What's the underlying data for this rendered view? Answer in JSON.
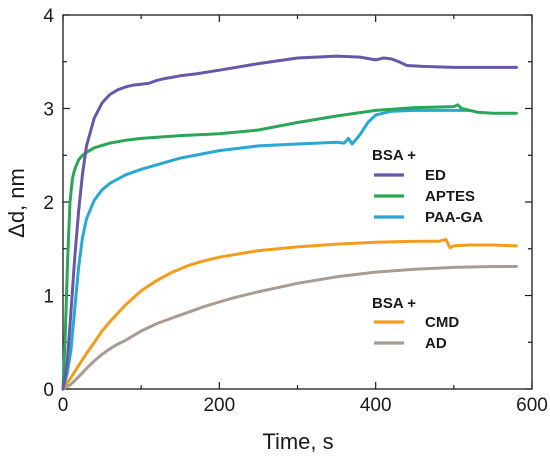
{
  "chart_data": {
    "type": "line",
    "title": "",
    "xlabel": "Time, s",
    "ylabel": "Δd, nm",
    "xlim": [
      0,
      600
    ],
    "ylim": [
      0,
      4
    ],
    "xticks": [
      0,
      200,
      400,
      600
    ],
    "yticks": [
      0,
      1,
      2,
      3,
      4
    ],
    "grid": false,
    "legends": [
      {
        "title": "BSA +",
        "placement": "center-right",
        "entries": [
          "ED",
          "APTES",
          "PAA-GA"
        ]
      },
      {
        "title": "BSA +",
        "placement": "bottom-right",
        "entries": [
          "CMD",
          "AD"
        ]
      }
    ],
    "series": [
      {
        "name": "ED",
        "color": "#6757a8",
        "x": [
          0,
          5,
          10,
          15,
          20,
          25,
          30,
          40,
          50,
          60,
          70,
          80,
          90,
          100,
          110,
          120,
          130,
          150,
          170,
          200,
          250,
          300,
          350,
          380,
          400,
          410,
          420,
          430,
          440,
          460,
          500,
          550,
          580
        ],
        "y": [
          0,
          0.25,
          0.8,
          1.4,
          1.9,
          2.3,
          2.6,
          2.9,
          3.06,
          3.15,
          3.2,
          3.23,
          3.25,
          3.26,
          3.27,
          3.3,
          3.32,
          3.35,
          3.37,
          3.41,
          3.48,
          3.54,
          3.56,
          3.55,
          3.52,
          3.54,
          3.53,
          3.5,
          3.46,
          3.45,
          3.44,
          3.44,
          3.44
        ]
      },
      {
        "name": "APTES",
        "color": "#2aa659",
        "x": [
          0,
          3,
          6,
          9,
          12,
          15,
          20,
          25,
          30,
          40,
          60,
          80,
          100,
          150,
          200,
          250,
          300,
          350,
          400,
          450,
          500,
          505,
          510,
          530,
          550,
          580
        ],
        "y": [
          0,
          0.6,
          1.4,
          2.0,
          2.25,
          2.35,
          2.45,
          2.5,
          2.53,
          2.58,
          2.63,
          2.66,
          2.68,
          2.71,
          2.73,
          2.77,
          2.85,
          2.92,
          2.98,
          3.01,
          3.02,
          3.04,
          3.0,
          2.96,
          2.95,
          2.95
        ]
      },
      {
        "name": "PAA-GA",
        "color": "#29a8d4",
        "x": [
          0,
          5,
          10,
          15,
          20,
          25,
          30,
          40,
          50,
          60,
          80,
          100,
          150,
          200,
          250,
          300,
          350,
          360,
          365,
          370,
          380,
          390,
          400,
          420,
          450,
          500,
          520
        ],
        "y": [
          0,
          0.15,
          0.4,
          0.85,
          1.3,
          1.62,
          1.82,
          2.02,
          2.13,
          2.2,
          2.29,
          2.35,
          2.47,
          2.55,
          2.6,
          2.62,
          2.64,
          2.63,
          2.68,
          2.62,
          2.72,
          2.85,
          2.93,
          2.97,
          2.98,
          2.98,
          2.98
        ]
      },
      {
        "name": "CMD",
        "color": "#f39c1e",
        "x": [
          0,
          10,
          20,
          30,
          40,
          50,
          60,
          80,
          100,
          120,
          140,
          160,
          180,
          200,
          250,
          300,
          350,
          400,
          450,
          480,
          490,
          495,
          500,
          520,
          550,
          580
        ],
        "y": [
          0,
          0.12,
          0.25,
          0.38,
          0.5,
          0.62,
          0.72,
          0.9,
          1.05,
          1.16,
          1.25,
          1.32,
          1.37,
          1.41,
          1.48,
          1.52,
          1.55,
          1.57,
          1.58,
          1.58,
          1.6,
          1.51,
          1.53,
          1.54,
          1.54,
          1.53
        ]
      },
      {
        "name": "AD",
        "color": "#a89c92",
        "x": [
          0,
          10,
          20,
          30,
          40,
          50,
          60,
          70,
          80,
          100,
          120,
          140,
          160,
          180,
          200,
          220,
          250,
          300,
          350,
          400,
          450,
          500,
          550,
          580
        ],
        "y": [
          0,
          0.05,
          0.13,
          0.22,
          0.3,
          0.37,
          0.43,
          0.48,
          0.52,
          0.62,
          0.7,
          0.76,
          0.82,
          0.88,
          0.93,
          0.98,
          1.04,
          1.13,
          1.2,
          1.25,
          1.28,
          1.3,
          1.31,
          1.31
        ]
      }
    ]
  }
}
